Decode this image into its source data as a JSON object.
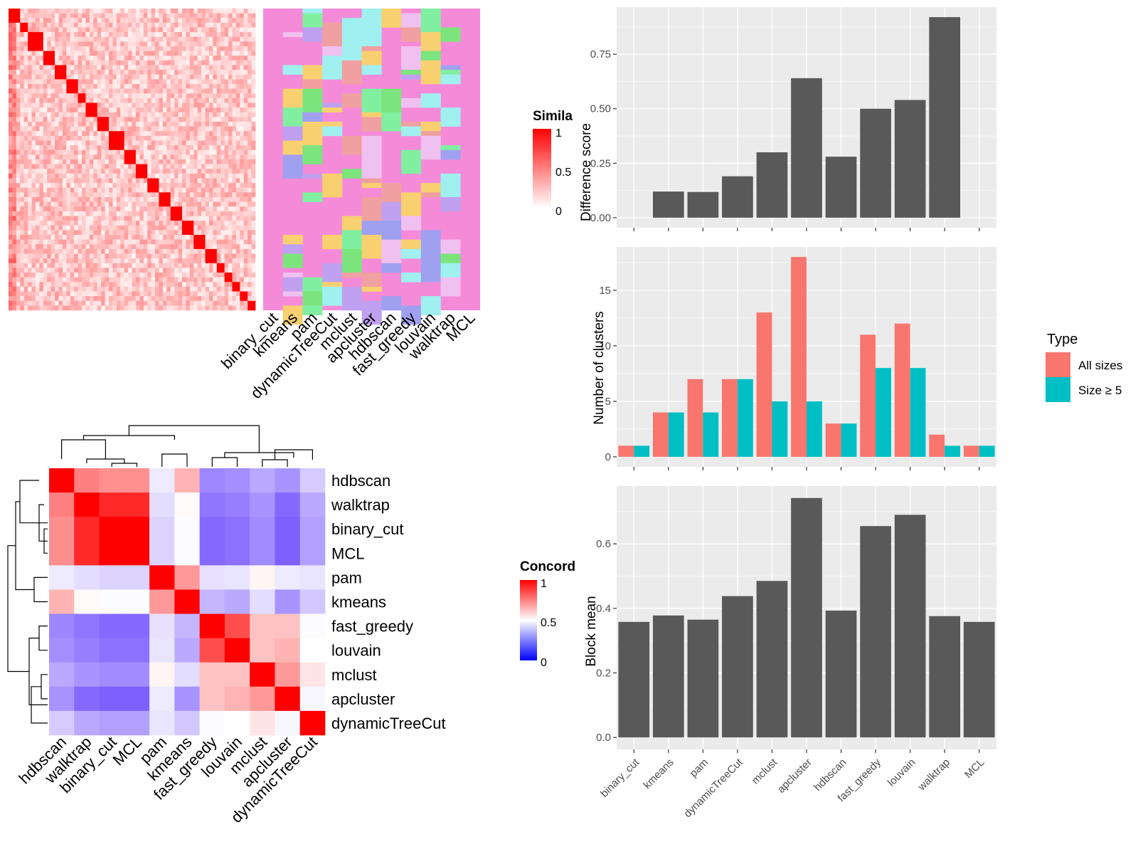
{
  "methods": [
    "binary_cut",
    "kmeans",
    "pam",
    "dynamicTreeCut",
    "mclust",
    "apcluster",
    "hdbscan",
    "fast_greedy",
    "louvain",
    "walktrap",
    "MCL"
  ],
  "similarity_legend": {
    "title": "Simila",
    "ticks": [
      "1",
      "0.5",
      "0"
    ]
  },
  "concordance_legend": {
    "title": "Concord",
    "ticks": [
      "1",
      "0.5",
      "0"
    ]
  },
  "type_legend": {
    "title": "Type",
    "items": [
      "All sizes",
      "Size ≥ 5"
    ]
  },
  "colors": {
    "all_sizes": "#F8766D",
    "size5": "#00BFC4",
    "bar": "#595959",
    "panel": "#EBEBEB"
  },
  "chart_data": [
    {
      "type": "heatmap",
      "name": "similarity",
      "columns": [
        "binary_cut",
        "kmeans",
        "pam",
        "dynamicTreeCut",
        "mclust",
        "apcluster",
        "hdbscan",
        "fast_greedy",
        "louvain",
        "walktrap",
        "MCL"
      ]
    },
    {
      "type": "heatmap",
      "name": "concordance",
      "rows": [
        "hdbscan",
        "walktrap",
        "binary_cut",
        "MCL",
        "pam",
        "kmeans",
        "fast_greedy",
        "louvain",
        "mclust",
        "apcluster",
        "dynamicTreeCut"
      ],
      "cols": [
        "hdbscan",
        "walktrap",
        "binary_cut",
        "MCL",
        "pam",
        "kmeans",
        "fast_greedy",
        "louvain",
        "mclust",
        "apcluster",
        "dynamicTreeCut"
      ],
      "values": [
        [
          1.0,
          0.75,
          0.72,
          0.72,
          0.45,
          0.65,
          0.22,
          0.24,
          0.3,
          0.25,
          0.38
        ],
        [
          0.75,
          1.0,
          0.92,
          0.92,
          0.42,
          0.51,
          0.18,
          0.2,
          0.25,
          0.15,
          0.3
        ],
        [
          0.72,
          0.92,
          1.0,
          1.0,
          0.4,
          0.49,
          0.15,
          0.17,
          0.23,
          0.13,
          0.28
        ],
        [
          0.72,
          0.92,
          1.0,
          1.0,
          0.4,
          0.49,
          0.15,
          0.17,
          0.23,
          0.13,
          0.28
        ],
        [
          0.45,
          0.42,
          0.4,
          0.4,
          1.0,
          0.7,
          0.43,
          0.44,
          0.52,
          0.45,
          0.44
        ],
        [
          0.65,
          0.51,
          0.49,
          0.49,
          0.7,
          1.0,
          0.33,
          0.3,
          0.42,
          0.25,
          0.37
        ],
        [
          0.22,
          0.18,
          0.15,
          0.15,
          0.43,
          0.33,
          1.0,
          0.85,
          0.62,
          0.62,
          0.49
        ],
        [
          0.24,
          0.2,
          0.17,
          0.17,
          0.44,
          0.3,
          0.85,
          1.0,
          0.62,
          0.65,
          0.5
        ],
        [
          0.3,
          0.25,
          0.23,
          0.23,
          0.52,
          0.42,
          0.62,
          0.62,
          1.0,
          0.7,
          0.55
        ],
        [
          0.25,
          0.15,
          0.13,
          0.13,
          0.45,
          0.25,
          0.62,
          0.65,
          0.7,
          1.0,
          0.48
        ],
        [
          0.38,
          0.3,
          0.28,
          0.28,
          0.44,
          0.37,
          0.49,
          0.5,
          0.55,
          0.48,
          1.0
        ]
      ]
    },
    {
      "type": "bar",
      "name": "difference",
      "categories": [
        "binary_cut",
        "kmeans",
        "pam",
        "dynamicTreeCut",
        "mclust",
        "apcluster",
        "hdbscan",
        "fast_greedy",
        "louvain",
        "walktrap",
        "MCL"
      ],
      "values": [
        0,
        0.12,
        0.118,
        0.19,
        0.3,
        0.64,
        0.28,
        0.5,
        0.54,
        0.92,
        0
      ],
      "ylabel": "Difference score",
      "yticks": [
        0.0,
        0.25,
        0.5,
        0.75
      ],
      "ylim": [
        -0.046,
        0.966
      ]
    },
    {
      "type": "bar",
      "name": "clusters",
      "categories": [
        "binary_cut",
        "kmeans",
        "pam",
        "dynamicTreeCut",
        "mclust",
        "apcluster",
        "hdbscan",
        "fast_greedy",
        "louvain",
        "walktrap",
        "MCL"
      ],
      "series": [
        {
          "name": "All sizes",
          "values": [
            1,
            4,
            7,
            7,
            13,
            18,
            3,
            11,
            12,
            2,
            1
          ]
        },
        {
          "name": "Size ≥ 5",
          "values": [
            1,
            4,
            4,
            7,
            5,
            5,
            3,
            8,
            8,
            1,
            1
          ]
        }
      ],
      "ylabel": "Number of clusters",
      "yticks": [
        0,
        5,
        10,
        15
      ],
      "ylim": [
        -0.9,
        18.9
      ]
    },
    {
      "type": "bar",
      "name": "blockmean",
      "categories": [
        "binary_cut",
        "kmeans",
        "pam",
        "dynamicTreeCut",
        "mclust",
        "apcluster",
        "hdbscan",
        "fast_greedy",
        "louvain",
        "walktrap",
        "MCL"
      ],
      "values": [
        0.358,
        0.378,
        0.365,
        0.438,
        0.485,
        0.742,
        0.393,
        0.655,
        0.69,
        0.376,
        0.358
      ],
      "ylabel": "Block mean",
      "yticks": [
        0.0,
        0.2,
        0.4,
        0.6
      ],
      "ylim": [
        -0.037,
        0.779
      ]
    }
  ]
}
